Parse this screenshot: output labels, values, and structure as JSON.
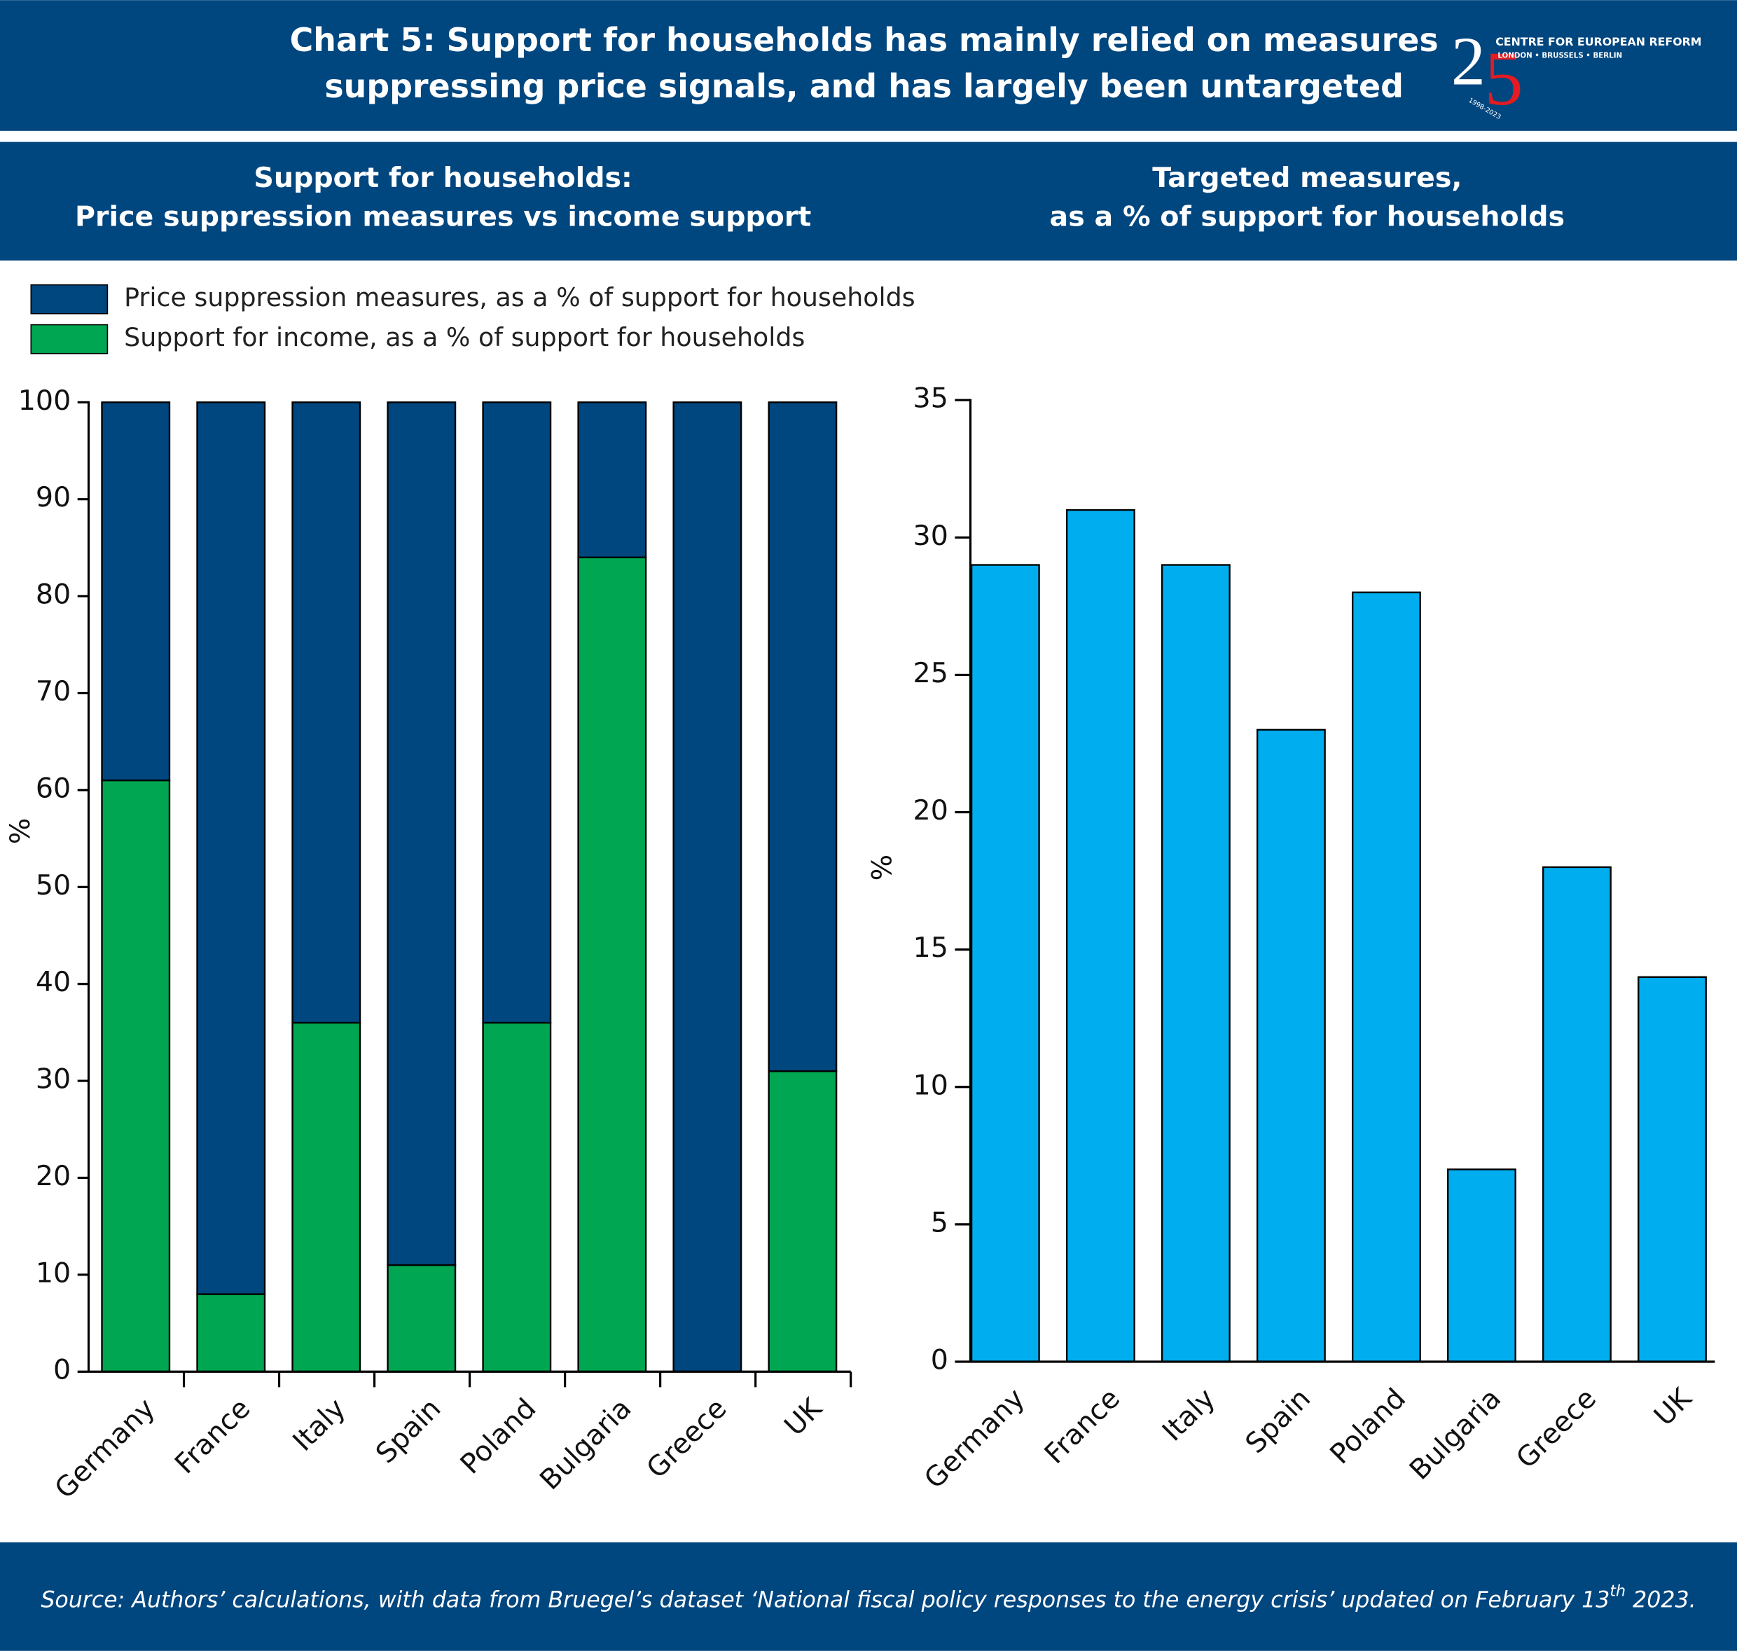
{
  "header": {
    "title": [
      "Chart 5: Support for households has mainly relied on measures",
      "suppressing price signals, and has largely been untargeted"
    ],
    "logo_digits": [
      "2",
      "5"
    ],
    "logo_name": "CENTRE FOR EUROPEAN REFORM",
    "logo_cities": "LONDON • BRUSSELS • BERLIN",
    "logo_years": "1998-2023"
  },
  "chart_data": [
    {
      "type": "bar",
      "stacked": true,
      "title": [
        "Support for households:",
        "Price suppression measures vs income support"
      ],
      "categories": [
        "Germany",
        "France",
        "Italy",
        "Spain",
        "Poland",
        "Bulgaria",
        "Greece",
        "UK"
      ],
      "series": [
        {
          "name": "Support for income, as a % of support for households",
          "color": "#00a651",
          "values": [
            61,
            8,
            36,
            11,
            36,
            84,
            0,
            31
          ]
        },
        {
          "name": "Price suppression measures, as a % of support for households",
          "color": "#00467f",
          "values": [
            39,
            92,
            64,
            89,
            64,
            16,
            100,
            69
          ]
        }
      ],
      "ylabel": "%",
      "ylim": [
        0,
        100
      ],
      "yticks": [
        0,
        10,
        20,
        30,
        40,
        50,
        60,
        70,
        80,
        90,
        100
      ]
    },
    {
      "type": "bar",
      "title": [
        "Targeted measures,",
        "as a % of support for households"
      ],
      "categories": [
        "Germany",
        "France",
        "Italy",
        "Spain",
        "Poland",
        "Bulgaria",
        "Greece",
        "UK"
      ],
      "values": [
        29,
        31,
        29,
        23,
        28,
        7,
        18,
        14
      ],
      "color": "#00aeef",
      "ylabel": "%",
      "ylim": [
        0,
        35
      ],
      "yticks": [
        0,
        5,
        10,
        15,
        20,
        25,
        30,
        35
      ]
    }
  ],
  "source": [
    "Source: Authors’ calculations, with data from Bruegel’s dataset ‘National fiscal policy responses to the energy crisis’ updated on February 13",
    "th",
    " 2023."
  ]
}
